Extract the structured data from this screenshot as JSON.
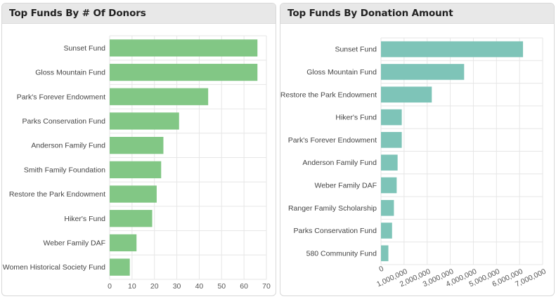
{
  "panels": [
    {
      "title": "Top Funds By # Of Donors"
    },
    {
      "title": "Top Funds By Donation Amount"
    }
  ],
  "colors": {
    "donors_bar": "#82c785",
    "amount_bar": "#7ec4b8",
    "grid": "#e6e6e6"
  },
  "chart_data": [
    {
      "type": "bar",
      "orientation": "horizontal",
      "title": "Top Funds By # Of Donors",
      "categories": [
        "Sunset Fund",
        "Gloss Mountain Fund",
        "Park's Forever Endowment",
        "Parks Conservation Fund",
        "Anderson Family Fund",
        "Smith Family Foundation",
        "Restore the Park Endowment",
        "Hiker's Fund",
        "Weber Family DAF",
        "Women Historical Society Fund"
      ],
      "values": [
        66,
        66,
        44,
        31,
        24,
        23,
        21,
        19,
        12,
        9
      ],
      "xlim": [
        0,
        70
      ],
      "ticks": [
        0,
        10,
        20,
        30,
        40,
        50,
        60,
        70
      ],
      "tick_labels": [
        "0",
        "10",
        "20",
        "30",
        "40",
        "50",
        "60",
        "70"
      ],
      "grid": true
    },
    {
      "type": "bar",
      "orientation": "horizontal",
      "title": "Top Funds By Donation Amount",
      "categories": [
        "Sunset Fund",
        "Gloss Mountain Fund",
        "Restore the Park Endowment",
        "Hiker's Fund",
        "Park's Forever Endowment",
        "Anderson Family Fund",
        "Weber Family DAF",
        "Ranger Family Scholarship",
        "Parks Conservation Fund",
        "580 Community Fund"
      ],
      "values": [
        6150000,
        3600000,
        2200000,
        900000,
        900000,
        720000,
        680000,
        560000,
        480000,
        320000
      ],
      "xlim": [
        0,
        7000000
      ],
      "ticks": [
        0,
        1000000,
        2000000,
        3000000,
        4000000,
        5000000,
        6000000,
        7000000
      ],
      "tick_labels": [
        "0",
        "1,000,000",
        "2,000,000",
        "3,000,000",
        "4,000,000",
        "5,000,000",
        "6,000,000",
        "7,000,000"
      ],
      "grid": true
    }
  ]
}
